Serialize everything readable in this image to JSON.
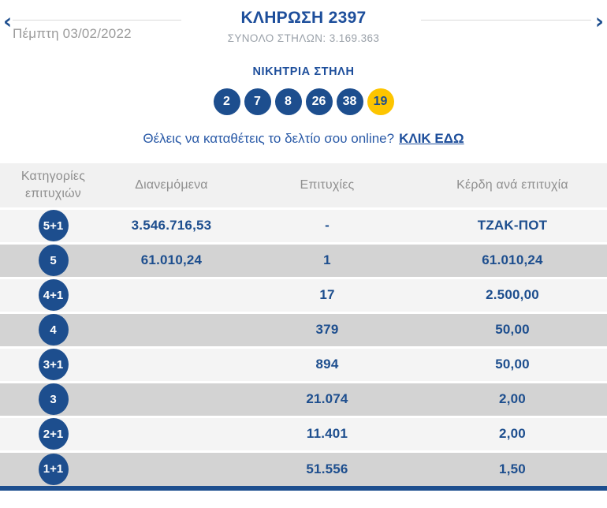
{
  "nav": {
    "date": "Πέμπτη 03/02/2022",
    "title": "ΚΛΗΡΩΣΗ 2397",
    "total_columns_label": "ΣΥΝΟΛΟ ΣΤΗΛΩΝ:",
    "total_columns_value": "3.169.363",
    "prev_icon": "‹",
    "next_icon": "›"
  },
  "winning": {
    "label": "ΝΙΚΗΤΡΙΑ ΣΤΗΛΗ",
    "numbers": [
      "2",
      "7",
      "8",
      "26",
      "38"
    ],
    "bonus": "19"
  },
  "cta": {
    "text": "Θέλεις να καταθέτεις το δελτίο σου online?",
    "link": "ΚΛΙΚ ΕΔΩ"
  },
  "table": {
    "headers": [
      "Κατηγορίες επιτυχιών",
      "Διανεμόμενα",
      "Επιτυχίες",
      "Κέρδη ανά επιτυχία"
    ],
    "rows": [
      {
        "category": "5+1",
        "distributed": "3.546.716,53",
        "winners": "-",
        "prize": "ΤΖΑΚ-ΠΟΤ"
      },
      {
        "category": "5",
        "distributed": "61.010,24",
        "winners": "1",
        "prize": "61.010,24"
      },
      {
        "category": "4+1",
        "distributed": "",
        "winners": "17",
        "prize": "2.500,00"
      },
      {
        "category": "4",
        "distributed": "",
        "winners": "379",
        "prize": "50,00"
      },
      {
        "category": "3+1",
        "distributed": "",
        "winners": "894",
        "prize": "50,00"
      },
      {
        "category": "3",
        "distributed": "",
        "winners": "21.074",
        "prize": "2,00"
      },
      {
        "category": "2+1",
        "distributed": "",
        "winners": "11.401",
        "prize": "2,00"
      },
      {
        "category": "1+1",
        "distributed": "",
        "winners": "51.556",
        "prize": "1,50"
      }
    ]
  },
  "colors": {
    "brand_blue": "#1d4e8e",
    "bonus_yellow": "#fdc500",
    "row_light": "#f4f4f4",
    "row_dark": "#d3d3d3",
    "header_gray_text": "#8f8f8f",
    "muted_gray_text": "#9b9b9b"
  }
}
